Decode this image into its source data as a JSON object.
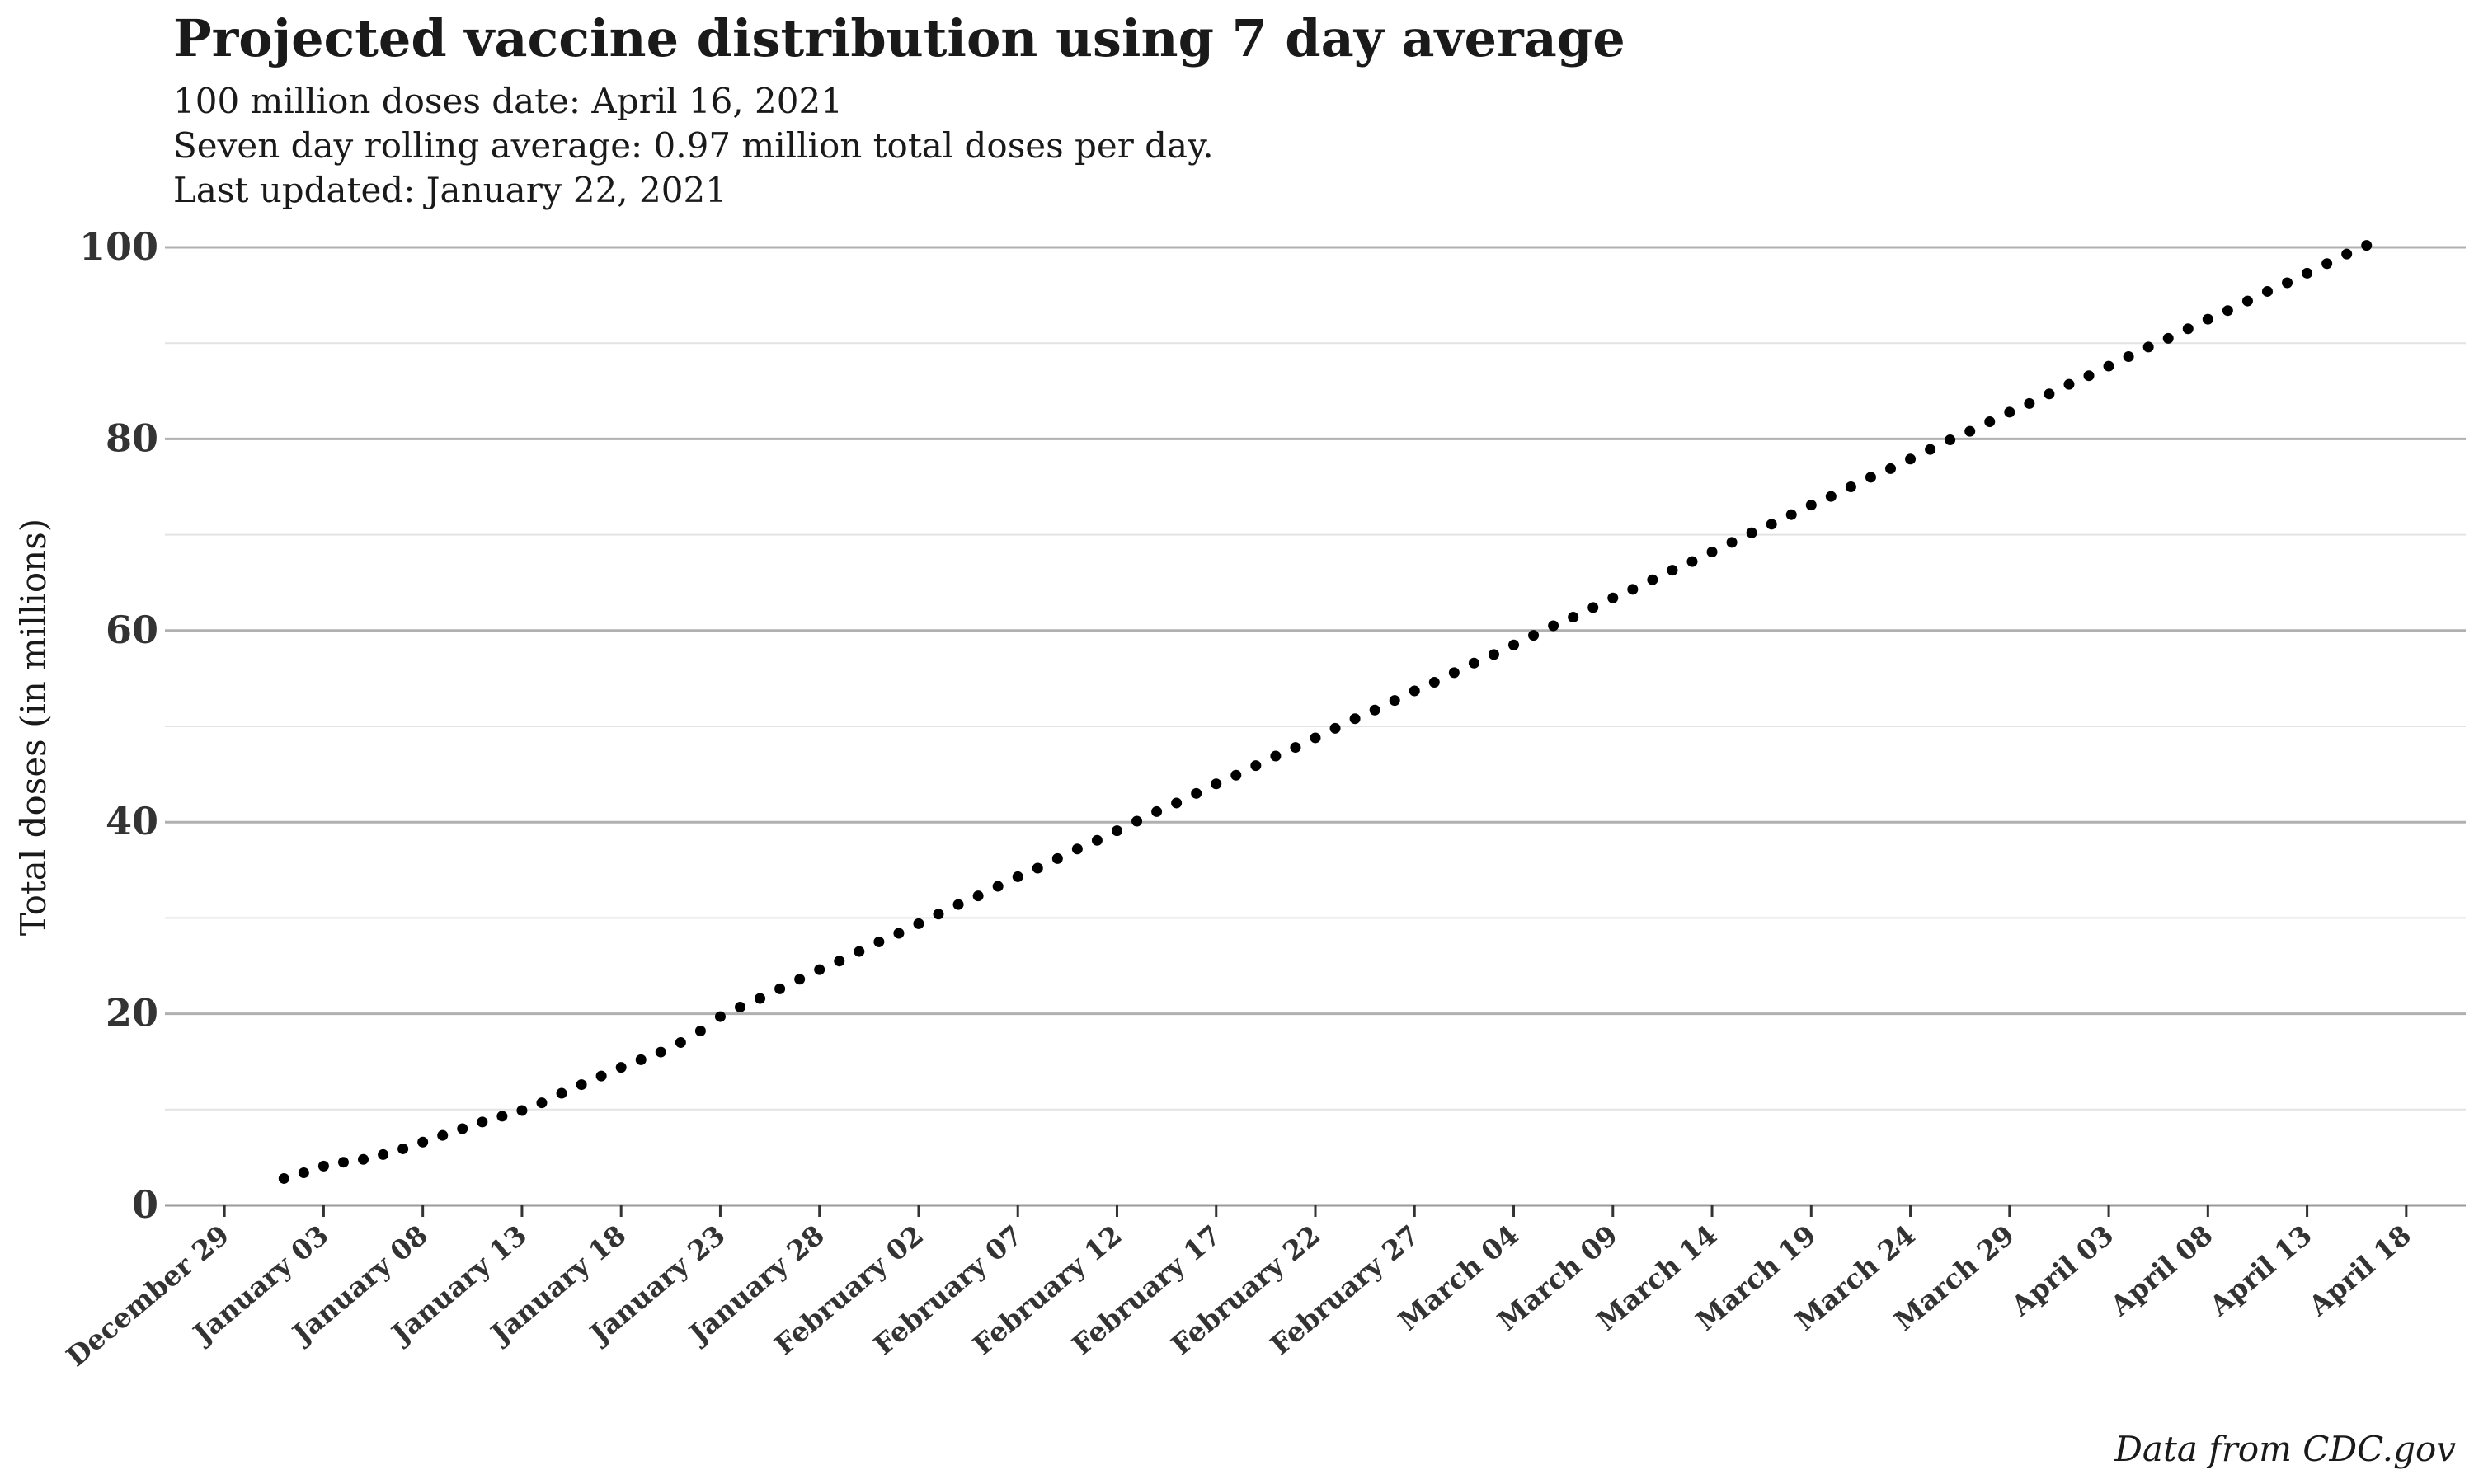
{
  "title": "Projected vaccine distribution using 7 day average",
  "subtitle_lines": [
    "100 million doses date: April 16, 2021",
    "Seven day rolling average: 0.97 million total doses per day.",
    "Last updated: January 22, 2021"
  ],
  "caption": "Data from CDC.gov",
  "chart_data": {
    "type": "scatter",
    "title": "Projected vaccine distribution using 7 day average",
    "xlabel": "",
    "ylabel": "Total doses (in millions)",
    "ylim": [
      0,
      100
    ],
    "yticks": [
      0,
      20,
      40,
      60,
      80,
      100
    ],
    "xlim": [
      "2020-12-26",
      "2021-04-21"
    ],
    "xticks": [
      {
        "date": "2020-12-29",
        "label": "December 29"
      },
      {
        "date": "2021-01-03",
        "label": "January 03"
      },
      {
        "date": "2021-01-08",
        "label": "January 08"
      },
      {
        "date": "2021-01-13",
        "label": "January 13"
      },
      {
        "date": "2021-01-18",
        "label": "January 18"
      },
      {
        "date": "2021-01-23",
        "label": "January 23"
      },
      {
        "date": "2021-01-28",
        "label": "January 28"
      },
      {
        "date": "2021-02-02",
        "label": "February 02"
      },
      {
        "date": "2021-02-07",
        "label": "February 07"
      },
      {
        "date": "2021-02-12",
        "label": "February 12"
      },
      {
        "date": "2021-02-17",
        "label": "February 17"
      },
      {
        "date": "2021-02-22",
        "label": "February 22"
      },
      {
        "date": "2021-02-27",
        "label": "February 27"
      },
      {
        "date": "2021-03-04",
        "label": "March 04"
      },
      {
        "date": "2021-03-09",
        "label": "March 09"
      },
      {
        "date": "2021-03-14",
        "label": "March 14"
      },
      {
        "date": "2021-03-19",
        "label": "March 19"
      },
      {
        "date": "2021-03-24",
        "label": "March 24"
      },
      {
        "date": "2021-03-29",
        "label": "March 29"
      },
      {
        "date": "2021-04-03",
        "label": "April 03"
      },
      {
        "date": "2021-04-08",
        "label": "April 08"
      },
      {
        "date": "2021-04-13",
        "label": "April 13"
      },
      {
        "date": "2021-04-18",
        "label": "April 18"
      }
    ],
    "grid": true,
    "series": [
      {
        "color": "#000000",
        "points": [
          {
            "x": "2021-01-01",
            "y": 2.8
          },
          {
            "x": "2021-01-02",
            "y": 3.4
          },
          {
            "x": "2021-01-03",
            "y": 4.1
          },
          {
            "x": "2021-01-04",
            "y": 4.5
          },
          {
            "x": "2021-01-05",
            "y": 4.8
          },
          {
            "x": "2021-01-06",
            "y": 5.3
          },
          {
            "x": "2021-01-07",
            "y": 5.9
          },
          {
            "x": "2021-01-08",
            "y": 6.6
          },
          {
            "x": "2021-01-09",
            "y": 7.3
          },
          {
            "x": "2021-01-10",
            "y": 8.0
          },
          {
            "x": "2021-01-11",
            "y": 8.7
          },
          {
            "x": "2021-01-12",
            "y": 9.3
          },
          {
            "x": "2021-01-13",
            "y": 9.9
          },
          {
            "x": "2021-01-14",
            "y": 10.7
          },
          {
            "x": "2021-01-15",
            "y": 11.7
          },
          {
            "x": "2021-01-16",
            "y": 12.6
          },
          {
            "x": "2021-01-17",
            "y": 13.5
          },
          {
            "x": "2021-01-18",
            "y": 14.4
          },
          {
            "x": "2021-01-19",
            "y": 15.2
          },
          {
            "x": "2021-01-20",
            "y": 16.0
          },
          {
            "x": "2021-01-21",
            "y": 17.0
          },
          {
            "x": "2021-01-22",
            "y": 18.2
          },
          {
            "x": "2021-01-23",
            "y": 19.7
          },
          {
            "x": "2021-01-24",
            "y": 20.7
          },
          {
            "x": "2021-01-25",
            "y": 21.6
          },
          {
            "x": "2021-01-26",
            "y": 22.6
          },
          {
            "x": "2021-01-27",
            "y": 23.6
          },
          {
            "x": "2021-01-28",
            "y": 24.6
          },
          {
            "x": "2021-01-29",
            "y": 25.5
          },
          {
            "x": "2021-01-30",
            "y": 26.5
          },
          {
            "x": "2021-01-31",
            "y": 27.5
          },
          {
            "x": "2021-02-01",
            "y": 28.4
          },
          {
            "x": "2021-02-02",
            "y": 29.4
          },
          {
            "x": "2021-02-03",
            "y": 30.4
          },
          {
            "x": "2021-02-04",
            "y": 31.4
          },
          {
            "x": "2021-02-05",
            "y": 32.3
          },
          {
            "x": "2021-02-06",
            "y": 33.3
          },
          {
            "x": "2021-02-07",
            "y": 34.3
          },
          {
            "x": "2021-02-08",
            "y": 35.2
          },
          {
            "x": "2021-02-09",
            "y": 36.2
          },
          {
            "x": "2021-02-10",
            "y": 37.2
          },
          {
            "x": "2021-02-11",
            "y": 38.1
          },
          {
            "x": "2021-02-12",
            "y": 39.1
          },
          {
            "x": "2021-02-13",
            "y": 40.1
          },
          {
            "x": "2021-02-14",
            "y": 41.1
          },
          {
            "x": "2021-02-15",
            "y": 42.0
          },
          {
            "x": "2021-02-16",
            "y": 43.0
          },
          {
            "x": "2021-02-17",
            "y": 44.0
          },
          {
            "x": "2021-02-18",
            "y": 44.9
          },
          {
            "x": "2021-02-19",
            "y": 45.9
          },
          {
            "x": "2021-02-20",
            "y": 46.9
          },
          {
            "x": "2021-02-21",
            "y": 47.8
          },
          {
            "x": "2021-02-22",
            "y": 48.8
          },
          {
            "x": "2021-02-23",
            "y": 49.8
          },
          {
            "x": "2021-02-24",
            "y": 50.8
          },
          {
            "x": "2021-02-25",
            "y": 51.7
          },
          {
            "x": "2021-02-26",
            "y": 52.7
          },
          {
            "x": "2021-02-27",
            "y": 53.7
          },
          {
            "x": "2021-02-28",
            "y": 54.6
          },
          {
            "x": "2021-03-01",
            "y": 55.6
          },
          {
            "x": "2021-03-02",
            "y": 56.6
          },
          {
            "x": "2021-03-03",
            "y": 57.5
          },
          {
            "x": "2021-03-04",
            "y": 58.5
          },
          {
            "x": "2021-03-05",
            "y": 59.5
          },
          {
            "x": "2021-03-06",
            "y": 60.5
          },
          {
            "x": "2021-03-07",
            "y": 61.4
          },
          {
            "x": "2021-03-08",
            "y": 62.4
          },
          {
            "x": "2021-03-09",
            "y": 63.4
          },
          {
            "x": "2021-03-10",
            "y": 64.3
          },
          {
            "x": "2021-03-11",
            "y": 65.3
          },
          {
            "x": "2021-03-12",
            "y": 66.3
          },
          {
            "x": "2021-03-13",
            "y": 67.2
          },
          {
            "x": "2021-03-14",
            "y": 68.2
          },
          {
            "x": "2021-03-15",
            "y": 69.2
          },
          {
            "x": "2021-03-16",
            "y": 70.2
          },
          {
            "x": "2021-03-17",
            "y": 71.1
          },
          {
            "x": "2021-03-18",
            "y": 72.1
          },
          {
            "x": "2021-03-19",
            "y": 73.1
          },
          {
            "x": "2021-03-20",
            "y": 74.0
          },
          {
            "x": "2021-03-21",
            "y": 75.0
          },
          {
            "x": "2021-03-22",
            "y": 76.0
          },
          {
            "x": "2021-03-23",
            "y": 76.9
          },
          {
            "x": "2021-03-24",
            "y": 77.9
          },
          {
            "x": "2021-03-25",
            "y": 78.9
          },
          {
            "x": "2021-03-26",
            "y": 79.9
          },
          {
            "x": "2021-03-27",
            "y": 80.8
          },
          {
            "x": "2021-03-28",
            "y": 81.8
          },
          {
            "x": "2021-03-29",
            "y": 82.8
          },
          {
            "x": "2021-03-30",
            "y": 83.7
          },
          {
            "x": "2021-03-31",
            "y": 84.7
          },
          {
            "x": "2021-04-01",
            "y": 85.7
          },
          {
            "x": "2021-04-02",
            "y": 86.6
          },
          {
            "x": "2021-04-03",
            "y": 87.6
          },
          {
            "x": "2021-04-04",
            "y": 88.6
          },
          {
            "x": "2021-04-05",
            "y": 89.6
          },
          {
            "x": "2021-04-06",
            "y": 90.5
          },
          {
            "x": "2021-04-07",
            "y": 91.5
          },
          {
            "x": "2021-04-08",
            "y": 92.5
          },
          {
            "x": "2021-04-09",
            "y": 93.4
          },
          {
            "x": "2021-04-10",
            "y": 94.4
          },
          {
            "x": "2021-04-11",
            "y": 95.4
          },
          {
            "x": "2021-04-12",
            "y": 96.3
          },
          {
            "x": "2021-04-13",
            "y": 97.3
          },
          {
            "x": "2021-04-14",
            "y": 98.3
          },
          {
            "x": "2021-04-15",
            "y": 99.3
          },
          {
            "x": "2021-04-16",
            "y": 100.2
          }
        ]
      }
    ]
  }
}
